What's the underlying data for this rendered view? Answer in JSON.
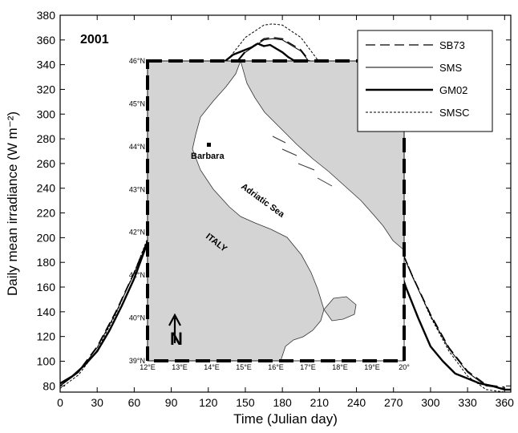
{
  "chart_data": {
    "type": "line",
    "xlabel": "Time (Julian day)",
    "ylabel": "Daily mean irradiance (W m⁻²)",
    "annotation": "2001",
    "xlim": [
      0,
      365
    ],
    "ylim": [
      75,
      380
    ],
    "xticks": [
      0,
      30,
      60,
      90,
      120,
      150,
      180,
      210,
      240,
      270,
      300,
      330,
      360
    ],
    "yticks": [
      80,
      100,
      120,
      140,
      160,
      180,
      200,
      220,
      240,
      260,
      280,
      300,
      320,
      340,
      360,
      380
    ],
    "legend_position": "top-right",
    "series": [
      {
        "name": "SB73",
        "style": "dashed",
        "x": [
          0,
          15,
          30,
          45,
          60,
          75,
          90,
          105,
          120,
          135,
          150,
          165,
          172,
          180,
          195,
          210,
          225,
          240,
          255,
          270,
          285,
          300,
          315,
          330,
          345,
          360
        ],
        "y": [
          80,
          92,
          112,
          140,
          172,
          208,
          244,
          278,
          308,
          333,
          351,
          361,
          362,
          361,
          352,
          333,
          306,
          275,
          240,
          205,
          170,
          138,
          111,
          92,
          81,
          79
        ]
      },
      {
        "name": "SMS",
        "style": "solid",
        "x": [
          0,
          15,
          30,
          45,
          60,
          75,
          90,
          105,
          120,
          135,
          150,
          165,
          172,
          180,
          195,
          210,
          225,
          240,
          255,
          270,
          285,
          300,
          315,
          330,
          345,
          360
        ],
        "y": [
          80,
          91,
          111,
          139,
          171,
          207,
          243,
          277,
          307,
          332,
          350,
          360,
          361,
          360,
          351,
          332,
          305,
          274,
          239,
          204,
          169,
          137,
          110,
          91,
          80,
          78
        ]
      },
      {
        "name": "GM02",
        "style": "thick",
        "x": [
          0,
          10,
          20,
          30,
          40,
          50,
          60,
          70,
          80,
          90,
          100,
          110,
          120,
          130,
          140,
          150,
          155,
          160,
          165,
          170,
          175,
          180,
          185,
          190,
          195,
          200,
          205,
          210,
          215,
          220,
          225,
          230,
          235,
          240,
          250,
          260,
          270,
          280,
          290,
          300,
          310,
          320,
          330,
          340,
          350,
          360,
          365
        ],
        "y": [
          82,
          88,
          97,
          108,
          125,
          145,
          167,
          194,
          222,
          252,
          280,
          305,
          325,
          340,
          348,
          352,
          354,
          357,
          355,
          356,
          353,
          350,
          346,
          343,
          340,
          339,
          335,
          329,
          325,
          318,
          305,
          296,
          288,
          272,
          240,
          205,
          190,
          160,
          135,
          112,
          100,
          90,
          86,
          82,
          80,
          77,
          77
        ]
      },
      {
        "name": "SMSC",
        "style": "dotted",
        "x": [
          0,
          15,
          30,
          45,
          60,
          75,
          90,
          105,
          120,
          135,
          150,
          165,
          172,
          180,
          195,
          210,
          225,
          240,
          255,
          270,
          285,
          300,
          315,
          330,
          345,
          360
        ],
        "y": [
          78,
          89,
          109,
          138,
          172,
          210,
          248,
          284,
          316,
          343,
          362,
          372,
          373,
          372,
          362,
          342,
          313,
          280,
          243,
          206,
          170,
          136,
          108,
          88,
          77,
          75
        ]
      }
    ]
  },
  "inset_map": {
    "lat_ticks": [
      "46°N",
      "45°N",
      "44°N",
      "43°N",
      "42°N",
      "41°N",
      "40°N",
      "39°N"
    ],
    "lon_ticks": [
      "12°E",
      "13°E",
      "14°E",
      "15°E",
      "16°E",
      "17°E",
      "18°E",
      "19°E",
      "20°"
    ],
    "labels": {
      "station": "Barbara",
      "sea": "Adriatic Sea",
      "country": "ITALY",
      "north": "N"
    },
    "land_color": "#d4d4d4",
    "sea_color": "#ffffff"
  }
}
